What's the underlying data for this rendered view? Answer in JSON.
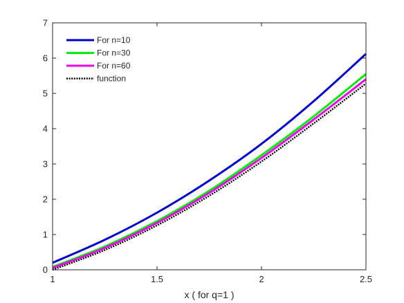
{
  "chart_data": {
    "type": "line",
    "title": "",
    "xlabel": "x ( for q=1 )",
    "ylabel": "",
    "xlim": [
      1,
      2.5
    ],
    "ylim": [
      0,
      7
    ],
    "xticks": [
      "1",
      "1.5",
      "2",
      "2.5"
    ],
    "yticks": [
      "0",
      "1",
      "2",
      "3",
      "4",
      "5",
      "6",
      "7"
    ],
    "grid": false,
    "legend_position": "top-left",
    "x": [
      1.0,
      1.25,
      1.5,
      1.75,
      2.0,
      2.25,
      2.5
    ],
    "series": [
      {
        "name": "For n=10",
        "color": "#0000cc",
        "style": "solid",
        "values": [
          0.2,
          0.85,
          1.62,
          2.53,
          3.57,
          4.78,
          6.12
        ]
      },
      {
        "name": "For n=30",
        "color": "#00ee00",
        "style": "solid",
        "values": [
          0.08,
          0.66,
          1.38,
          2.24,
          3.25,
          4.35,
          5.55
        ]
      },
      {
        "name": "For n=60",
        "color": "#ee00ee",
        "style": "solid",
        "values": [
          0.05,
          0.62,
          1.33,
          2.18,
          3.17,
          4.26,
          5.4
        ]
      },
      {
        "name": "function",
        "color": "#000000",
        "style": "dotted",
        "values": [
          0.0,
          0.56,
          1.26,
          2.1,
          3.07,
          4.15,
          5.28
        ]
      }
    ]
  }
}
